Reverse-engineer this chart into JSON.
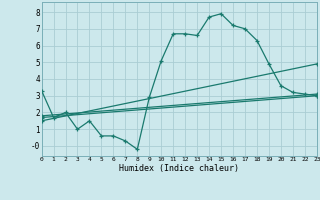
{
  "xlabel": "Humidex (Indice chaleur)",
  "bg_color": "#cce8ec",
  "grid_color": "#aacdd4",
  "line_color": "#1a7a6e",
  "xlim": [
    0,
    23
  ],
  "ylim": [
    -0.6,
    8.6
  ],
  "xtick_labels": [
    "0",
    "1",
    "2",
    "3",
    "4",
    "5",
    "6",
    "7",
    "8",
    "9",
    "10",
    "11",
    "12",
    "13",
    "14",
    "15",
    "16",
    "17",
    "18",
    "19",
    "20",
    "21",
    "22",
    "23"
  ],
  "yticks": [
    0,
    1,
    2,
    3,
    4,
    5,
    6,
    7,
    8
  ],
  "ytick_labels": [
    "-0",
    "1",
    "2",
    "3",
    "4",
    "5",
    "6",
    "7",
    "8"
  ],
  "series": [
    {
      "x": [
        0,
        1,
        2,
        3,
        4,
        5,
        6,
        7,
        8,
        9,
        10,
        11,
        12,
        13,
        14,
        15,
        16,
        17,
        18,
        19,
        20,
        21,
        22,
        23
      ],
      "y": [
        3.3,
        1.7,
        2.0,
        1.0,
        1.5,
        0.6,
        0.6,
        0.3,
        -0.2,
        2.9,
        5.1,
        6.7,
        6.7,
        6.6,
        7.7,
        7.9,
        7.2,
        7.0,
        6.3,
        4.9,
        3.6,
        3.2,
        3.1,
        3.0
      ]
    },
    {
      "x": [
        0,
        23
      ],
      "y": [
        1.7,
        3.0
      ]
    },
    {
      "x": [
        0,
        23
      ],
      "y": [
        1.5,
        4.9
      ]
    },
    {
      "x": [
        0,
        23
      ],
      "y": [
        1.8,
        3.1
      ]
    }
  ]
}
